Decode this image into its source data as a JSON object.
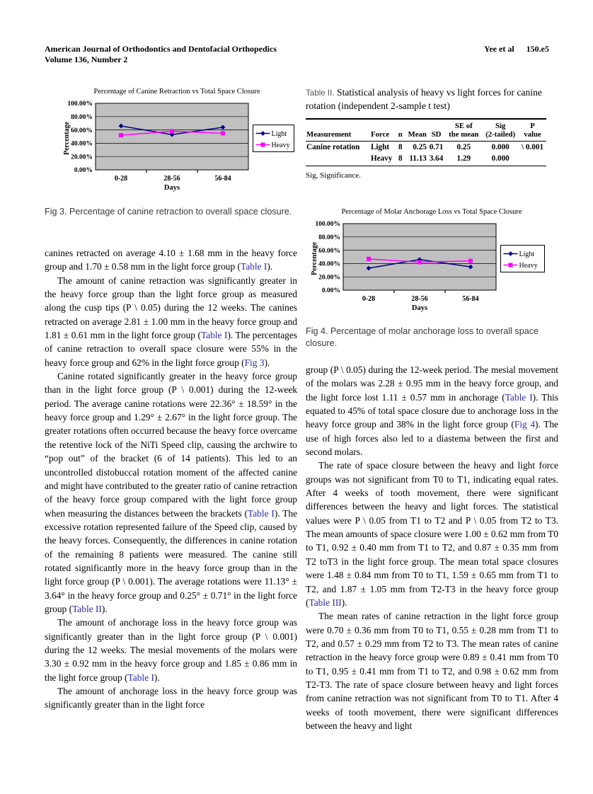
{
  "header": {
    "journal_line1": "American Journal of Orthodontics and Dentofacial Orthopedics",
    "journal_line2": "Volume 136, Number 2",
    "authors": "Yee et al",
    "page_number": "150.e5"
  },
  "chart_data": [
    {
      "type": "line",
      "title": "Percentage of Canine Retraction vs Total Space Closure",
      "xlabel": "Days",
      "ylabel": "Percentage",
      "categories": [
        "0-28",
        "28-56",
        "56-84"
      ],
      "series": [
        {
          "name": "Light",
          "color": "#000080",
          "marker": "diamond",
          "values": [
            66,
            53,
            64
          ]
        },
        {
          "name": "Heavy",
          "color": "#FF00FF",
          "marker": "square",
          "values": [
            52,
            58,
            55
          ]
        }
      ],
      "ylim": [
        0,
        100
      ],
      "ytick_step": 20,
      "ytick_suffix": "%",
      "plot_bg": "#c0c0c0",
      "grid": true,
      "legend_position": "right"
    },
    {
      "type": "line",
      "title": "Percentage of Molar Anchorage Loss vs Total Space Closure",
      "xlabel": "Days",
      "ylabel": "Percentage",
      "categories": [
        "0-28",
        "28-56",
        "56-84"
      ],
      "series": [
        {
          "name": "Light",
          "color": "#000080",
          "marker": "diamond",
          "values": [
            33,
            46,
            35
          ]
        },
        {
          "name": "Heavy",
          "color": "#FF00FF",
          "marker": "square",
          "values": [
            47,
            42,
            44
          ]
        }
      ],
      "ylim": [
        0,
        100
      ],
      "ytick_step": 20,
      "ytick_suffix": "%",
      "plot_bg": "#c0c0c0",
      "grid": true,
      "legend_position": "right"
    }
  ],
  "fig3_caption": "Fig 3. Percentage of canine retraction to overall space closure.",
  "fig4_caption": "Fig 4. Percentage of molar anchorage loss to overall space closure.",
  "table2": {
    "label": "Table II.",
    "title": "Statistical analysis of heavy vs light forces for canine rotation (independent 2-sample t test)",
    "columns": [
      "Measurement",
      "Force",
      "n",
      "Mean",
      "SD",
      "SE of\nthe mean",
      "Sig\n(2-tailed)",
      "P\nvalue"
    ],
    "align": [
      "l",
      "l",
      "c",
      "r",
      "c",
      "c",
      "c",
      "c"
    ],
    "rows": [
      [
        "Canine rotation",
        "Light",
        "8",
        "0.25",
        "0.71",
        "0.25",
        "0.000",
        "\\ 0.001"
      ],
      [
        "",
        "Heavy",
        "8",
        "11.13",
        "3.64",
        "1.29",
        "0.000",
        ""
      ]
    ],
    "footnote": "Sig, Significance."
  },
  "columns": {
    "left": [
      {
        "indent": false,
        "text": "canines retracted on average 4.10 ± 1.68 mm in the heavy force group and 1.70 ± 0.58 mm in the light force group ([[Table I]])."
      },
      {
        "indent": true,
        "text": "The amount of canine retraction was significantly greater in the heavy force group than the light force group as measured along the cusp tips (P \\ 0.05) during the 12 weeks. The canines retracted on average 2.81 ± 1.00 mm in the heavy force group and 1.81 ± 0.61 mm in the light force group ([[Table I]]). The percentages of canine retraction to overall space closure were 55% in the heavy force group and 62% in the light force group ([[Fig 3]])."
      },
      {
        "indent": true,
        "text": "Canine rotated significantly greater in the heavy force group than in the light force group (P \\ 0.001) during the 12-week period. The average canine rotations were 22.36° ± 18.59° in the heavy force group and 1.29° ± 2.67° in the light force group. The greater rotations often occurred because the heavy force overcame the retentive lock of the NiTi Speed clip, causing the archwire to “pop out” of the bracket (6 of 14 patients). This led to an uncontrolled distobuccal rotation moment of the affected canine and might have contributed to the greater ratio of canine retraction of the heavy force group compared with the light force group when measuring the distances between the brackets ([[Table I]]). The excessive rotation represented failure of the Speed clip, caused by the heavy forces. Consequently, the differences in canine rotation of the remaining 8 patients were measured. The canine still rotated significantly more in the heavy force group than in the light force group (P \\ 0.001). The average rotations were 11.13° ± 3.64° in the heavy force group and 0.25° ± 0.71° in the light force group ([[Table II]])."
      },
      {
        "indent": true,
        "text": "The amount of anchorage loss in the heavy force group was significantly greater than in the light force group (P \\ 0.001) during the 12 weeks. The mesial movements of the molars were 3.30 ± 0.92 mm in the heavy force group and 1.85 ± 0.86 mm in the light force group ([[Table I]])."
      },
      {
        "indent": true,
        "text": "The amount of anchorage loss in the heavy force group was significantly greater than in the light force"
      }
    ],
    "right": [
      {
        "indent": false,
        "text": "group (P \\ 0.05) during the 12-week period. The mesial movement of the molars was 2.28 ± 0.95 mm in the heavy force group, and the light force lost 1.11 ± 0.57 mm in anchorage ([[Table I]]). This equated to 45% of total space closure due to anchorage loss in the heavy force group and 38% in the light force group ([[Fig 4]]). The use of high forces also led to a diastema between the first and second molars."
      },
      {
        "indent": true,
        "text": "The rate of space closure between the heavy and light force groups was not significant from T0 to T1, indicating equal rates. After 4 weeks of tooth movement, there were significant differences between the heavy and light forces. The statistical values were P \\ 0.05 from T1 to T2 and P \\ 0.05 from T2 to T3. The mean amounts of space closure were 1.00 ± 0.62 mm from T0 to T1, 0.92 ± 0.40 mm from T1 to T2, and 0.87 ± 0.35 mm from T2 toT3 in the light force group. The mean total space closures were 1.48 ± 0.84 mm from T0 to T1, 1.59 ± 0.65 mm from T1 to T2, and 1.87 ± 1.05 mm from T2-T3 in the heavy force group ([[Table III]])."
      },
      {
        "indent": true,
        "text": "The mean rates of canine retraction in the light force group were 0.70 ± 0.36 mm from T0 to T1, 0.55 ± 0.28 mm from T1 to T2, and 0.57 ± 0.29 mm from T2 to T3. The mean rates of canine retraction in the heavy force group were 0.89 ± 0.41 mm from T0 to T1, 0.95 ± 0.41 mm from T1 to T2, and 0.98 ± 0.62 mm from T2-T3. The rate of space closure between heavy and light forces from canine retraction was not significant from T0 to T1. After 4 weeks of tooth movement, there were significant differences between the heavy and light"
      }
    ]
  }
}
